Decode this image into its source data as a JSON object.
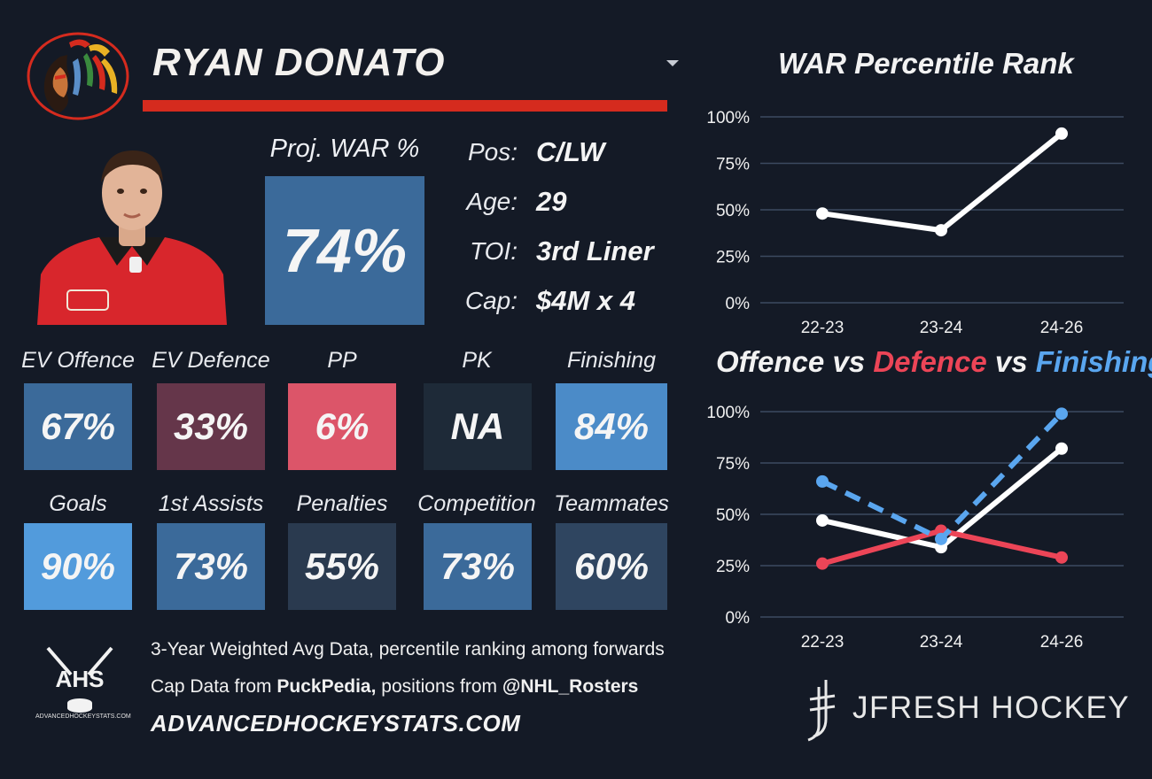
{
  "player": {
    "name": "RYAN DONATO",
    "proj_label": "Proj. WAR %",
    "proj_value": "74%",
    "info": [
      {
        "label": "Pos:",
        "value": "C/LW"
      },
      {
        "label": "Age:",
        "value": "29"
      },
      {
        "label": "TOI:",
        "value": "3rd Liner"
      },
      {
        "label": "Cap:",
        "value": "$4M x 4"
      }
    ]
  },
  "tiles_row1": [
    {
      "label": "EV Offence",
      "value": "67%",
      "color": "#3b6a9a"
    },
    {
      "label": "EV Defence",
      "value": "33%",
      "color": "#65364a"
    },
    {
      "label": "PP",
      "value": "6%",
      "color": "#dc5569"
    },
    {
      "label": "PK",
      "value": "NA",
      "color": "#1e2a38"
    },
    {
      "label": "Finishing",
      "value": "84%",
      "color": "#4b8bc8"
    }
  ],
  "tiles_row2": [
    {
      "label": "Goals",
      "value": "90%",
      "color": "#529bdc"
    },
    {
      "label": "1st Assists",
      "value": "73%",
      "color": "#3b6a9a"
    },
    {
      "label": "Penalties",
      "value": "55%",
      "color": "#2a3a4f"
    },
    {
      "label": "Competition",
      "value": "73%",
      "color": "#3b6a9a"
    },
    {
      "label": "Teammates",
      "value": "60%",
      "color": "#2f4560"
    }
  ],
  "footer": {
    "line1": "3-Year Weighted Avg Data, percentile ranking among forwards",
    "line2_prefix": "Cap Data from ",
    "line2_bold1": "PuckPedia,",
    "line2_mid": " positions from ",
    "line2_bold2": "@NHL_Rosters",
    "site": "ADVANCEDHOCKEYSTATS.COM",
    "ahs_logo_text": "AHS",
    "ahs_caption": "ADVANCEDHOCKEYSTATS.COM",
    "brand": "JFRESH HOCKEY"
  },
  "chart2_title": {
    "part1": "Offence",
    "vs1": " vs ",
    "part2": "Defence",
    "vs2": " vs ",
    "part3": "Finishing"
  },
  "chart_data": [
    {
      "type": "line",
      "title": "WAR Percentile Rank",
      "categories": [
        "22-23",
        "23-24",
        "24-26"
      ],
      "yticks": [
        "0%",
        "25%",
        "50%",
        "75%",
        "100%"
      ],
      "ylim": [
        0,
        100
      ],
      "grid": true,
      "series": [
        {
          "values": [
            48,
            39,
            91
          ],
          "color": "#ffffff",
          "dashed": false
        }
      ]
    },
    {
      "type": "line",
      "title": "Offence vs Defence vs Finishing",
      "categories": [
        "22-23",
        "23-24",
        "24-26"
      ],
      "yticks": [
        "0%",
        "25%",
        "50%",
        "75%",
        "100%"
      ],
      "ylim": [
        0,
        100
      ],
      "grid": true,
      "series": [
        {
          "name": "Offence",
          "values": [
            47,
            34,
            82
          ],
          "color": "#ffffff",
          "dashed": false
        },
        {
          "name": "Defence",
          "values": [
            26,
            42,
            29
          ],
          "color": "#ec4557",
          "dashed": false
        },
        {
          "name": "Finishing",
          "values": [
            66,
            38,
            99
          ],
          "color": "#5aa6ef",
          "dashed": true
        }
      ]
    }
  ]
}
